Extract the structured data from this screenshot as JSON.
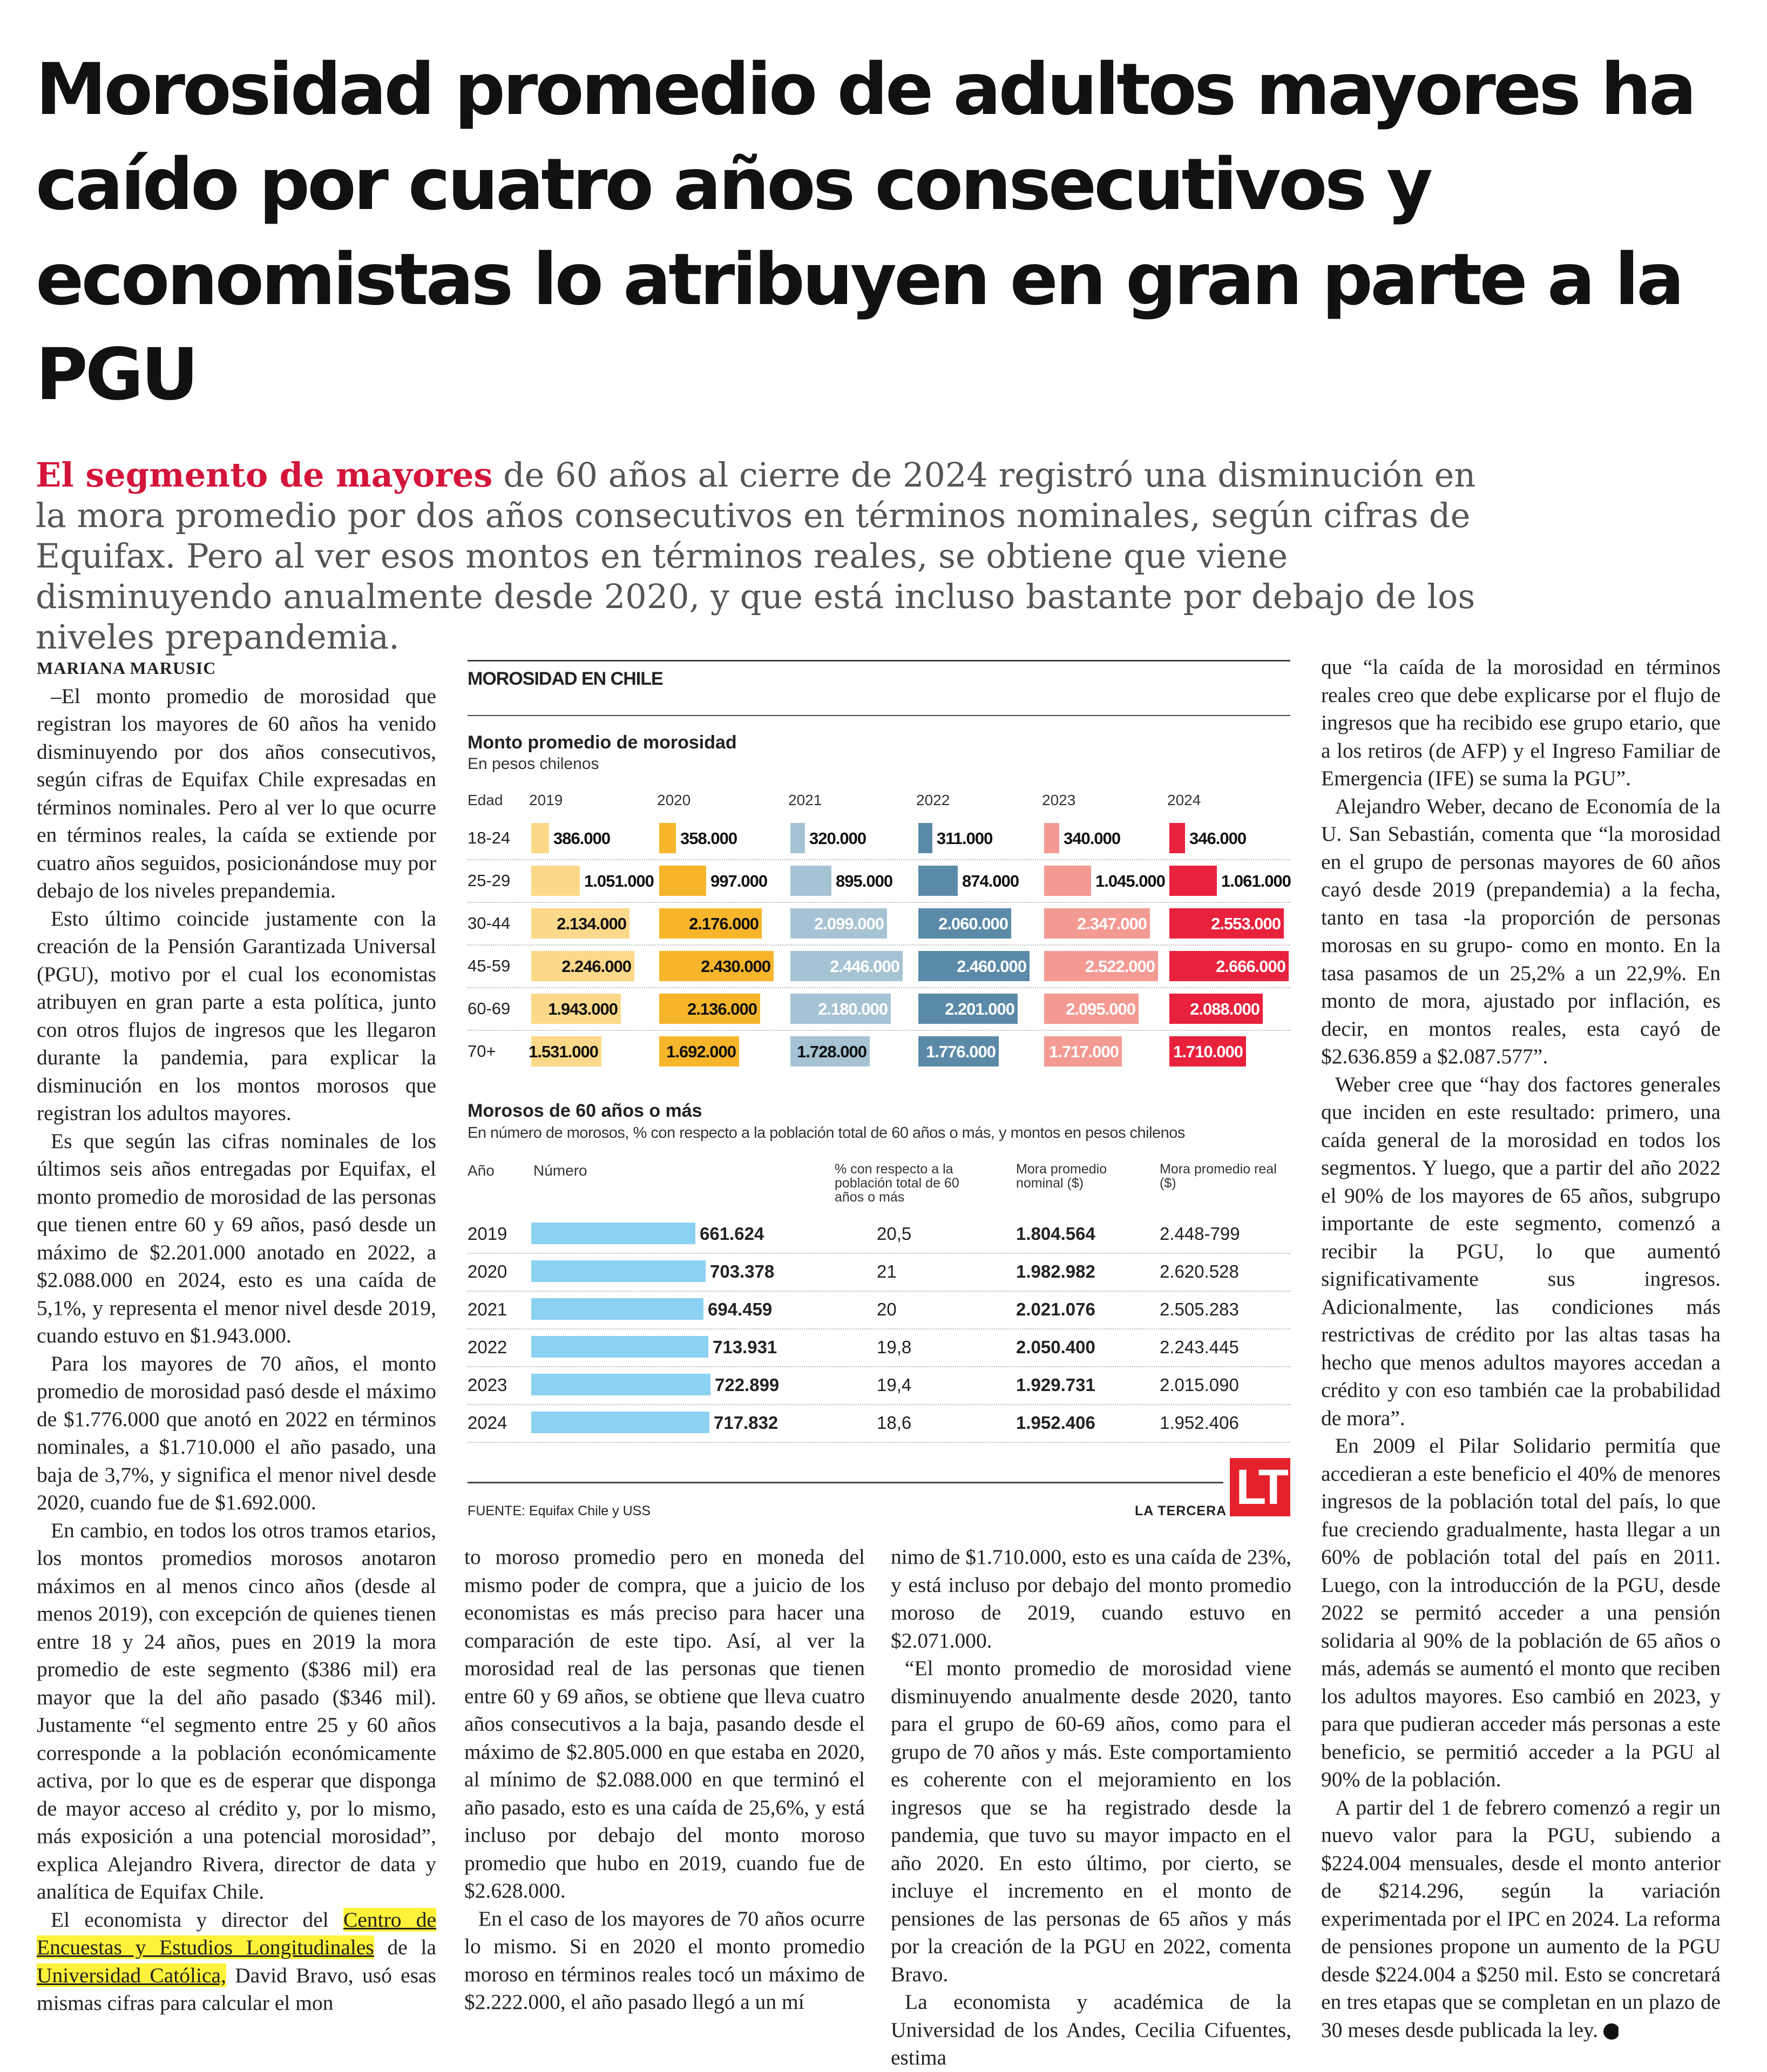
{
  "headline": "Morosidad promedio de adultos mayores ha caído por cuatro años consecutivos y economistas lo atribuyen en gran parte a la PGU",
  "dek": {
    "lead": "El segmento de mayores",
    "rest": " de 60 años al cierre de 2024 registró una disminución en la mora promedio por dos años consecutivos en términos nominales, según cifras de Equifax. Pero al ver esos montos en términos reales, se obtiene que viene disminuyendo anualmente desde 2020, y que está incluso bastante por debajo de los niveles prepandemia."
  },
  "byline": "MARIANA MARUSIC",
  "article": {
    "p1": "–El monto promedio de morosidad que registran los mayores de 60 años ha venido disminuyendo por dos años consecutivos, según cifras de Equifax Chile expresadas en términos nominales. Pero al ver lo que ocurre en términos reales, la caída se extiende por cuatro años seguidos, posicionándose muy por debajo de los niveles prepandemia.",
    "p2": "Esto último coincide justamente con la creación de la Pensión Garantizada Universal (PGU), motivo por el cual los economistas atribuyen en gran parte a esta política, junto con otros flujos de ingresos que les llegaron durante la pandemia, para explicar la disminución en los montos morosos que registran los adultos mayores.",
    "p3": "Es que según las cifras nominales de los últimos seis años entregadas por Equifax, el monto promedio de morosidad de las personas que tienen entre 60 y 69 años, pasó desde un máximo de $2.201.000 anotado en 2022, a $2.088.000 en 2024, esto es una caída de 5,1%, y representa el menor nivel desde 2019, cuando estuvo en $1.943.000.",
    "p4": "Para los mayores de 70 años, el monto promedio de morosidad pasó desde el máximo de $1.776.000 que anotó en 2022 en términos nominales, a $1.710.000 el año pasado, una baja de 3,7%, y significa el menor nivel desde 2020, cuando fue de $1.692.000.",
    "p5": "En cambio, en todos los otros tramos etarios, los montos promedios morosos anotaron máximos en al menos cinco años (desde al menos 2019), con excepción de quienes tienen entre 18 y 24 años, pues en 2019 la mora promedio de este segmento ($386 mil) era mayor que la del año pasado ($346 mil). Justamente “el segmento entre 25 y 60 años corresponde a la población económicamente activa, por lo que es de esperar que disponga de mayor acceso al crédito y, por lo mismo, más exposición a una potencial morosidad”, explica Alejandro Rivera, director de data y analítica de Equifax Chile.",
    "p6_a": "El economista y director del ",
    "p6_hl1": "Centro de Encuestas y Estudios Longitudinales",
    "p6_b": " de la ",
    "p6_hl2": "Universidad Católica,",
    "p6_c": " David Bravo, usó esas mismas cifras para calcular el mon",
    "c2p1": "to moroso promedio pero en moneda del mismo poder de compra, que a juicio de los economistas es más preciso para hacer una comparación de este tipo. Así, al ver la morosidad real de las personas que tienen entre 60 y 69 años, se obtiene que lleva cuatro años consecutivos a la baja, pasando desde el máximo de $2.805.000 en que estaba en 2020, al mínimo de $2.088.000 en que terminó el año pasado, esto es una caída de 25,6%, y está incluso por debajo del monto moroso promedio que hubo en 2019, cuando fue de $2.628.000.",
    "c2p2": "En el caso de los mayores de 70 años ocurre lo mismo. Si en 2020 el monto promedio moroso en términos reales tocó un máximo de $2.222.000, el año pasado llegó a un mí",
    "c3p1": "nimo de $1.710.000, esto es una caída de 23%, y está incluso por debajo del monto promedio moroso de 2019, cuando estuvo en $2.071.000.",
    "c3p2": "“El monto promedio de morosidad viene disminuyendo anualmente desde 2020, tanto para el grupo de 60-69 años, como para el grupo de 70 años y más. Este comportamiento es coherente con el mejoramiento en los ingresos que se ha registrado desde la pandemia, que tuvo su mayor impacto en el año 2020. En esto último, por cierto, se incluye el incremento en el monto de pensiones de las personas de 65 años y más por la creación de la PGU en 2022, comenta Bravo.",
    "c3p3": "La economista y académica de la Universidad de los Andes, Cecilia Cifuentes, estima",
    "c4p1": "que “la caída de la morosidad en términos reales creo que debe explicarse por el flujo de ingresos que ha recibido ese grupo etario, que a los retiros (de AFP) y el Ingreso Familiar de Emergencia (IFE) se suma la PGU”.",
    "c4p2": "Alejandro Weber, decano de Economía de la U. San Sebastián, comenta que “la morosidad en el grupo de personas mayores de 60 años cayó desde 2019 (prepandemia) a la fecha, tanto en tasa -la proporción de personas morosas en su grupo- como en monto. En la tasa pasamos de un 25,2% a un 22,9%. En monto de mora, ajustado por inflación, es decir, en montos reales, esta cayó de $2.636.859 a $2.087.577”.",
    "c4p3": "Weber cree que “hay dos factores generales que inciden en este resultado: primero, una caída general de la morosidad en todos los segmentos. Y luego, que a partir del año 2022 el 90% de los mayores de 65 años, subgrupo importante de este segmento, comenzó a recibir la PGU, lo que aumentó significativamente sus ingresos. Adicionalmente, las condiciones más restrictivas de crédito por las altas tasas ha hecho que menos adultos mayores accedan a crédito y con eso también cae la probabilidad de mora”.",
    "c4p4": "En 2009 el Pilar Solidario permitía que accedieran a este beneficio el 40% de menores ingresos de la población total del país, lo que fue creciendo gradualmente, hasta llegar a un 60% de población total del país en 2011. Luego, con la introducción de la PGU, desde 2022 se permitó acceder a una pensión solidaria al 90% de la población de 65 años o más, además se aumentó el monto que reciben los adultos mayores. Eso cambió en 2023, y para que pudieran acceder más personas a este beneficio, se permitió acceder a la PGU al 90% de la población.",
    "c4p5": "A partir del 1 de febrero comenzó a regir un nuevo valor para la PGU, subiendo a $224.004 mensuales, desde el monto anterior de $214.296, según la variación experimentada por el IPC en 2024. La reforma de pensiones propone un aumento de la PGU desde $224.004 a $250 mil. Esto se concretará en tres etapas que se completan en un plazo de 30 meses desde publicada la ley."
  },
  "chart_data": [
    {
      "type": "bar",
      "graphic_title": "MOROSIDAD EN CHILE",
      "title": "Monto promedio de morosidad",
      "subtitle": "En pesos chilenos",
      "row_header": "Edad",
      "categories": [
        "18-24",
        "25-29",
        "30-44",
        "45-59",
        "60-69",
        "70+"
      ],
      "series": [
        {
          "name": "2019",
          "color": "#fcd98a",
          "values": [
            386000,
            1051000,
            2134000,
            2246000,
            1943000,
            1531000
          ],
          "labels": [
            "386.000",
            "1.051.000",
            "2.134.000",
            "2.246.000",
            "1.943.000",
            "1.531.000"
          ]
        },
        {
          "name": "2020",
          "color": "#f7b52b",
          "values": [
            358000,
            997000,
            2176000,
            2430000,
            2136000,
            1692000
          ],
          "labels": [
            "358.000",
            "997.000",
            "2.176.000",
            "2.430.000",
            "2.136.000",
            "1.692.000"
          ]
        },
        {
          "name": "2021",
          "color": "#a6c3d3",
          "values": [
            320000,
            895000,
            2099000,
            2446000,
            2180000,
            1728000
          ],
          "labels": [
            "320.000",
            "895.000",
            "2.099.000",
            "2.446.000",
            "2.180.000",
            "1.728.000"
          ]
        },
        {
          "name": "2022",
          "color": "#5b8aa8",
          "values": [
            311000,
            874000,
            2060000,
            2460000,
            2201000,
            1776000
          ],
          "labels": [
            "311.000",
            "874.000",
            "2.060.000",
            "2.460.000",
            "2.201.000",
            "1.776.000"
          ]
        },
        {
          "name": "2023",
          "color": "#f39a93",
          "values": [
            340000,
            1045000,
            2347000,
            2522000,
            2095000,
            1717000
          ],
          "labels": [
            "340.000",
            "1.045.000",
            "2.347.000",
            "2.522.000",
            "2.095.000",
            "1.717.000"
          ]
        },
        {
          "name": "2024",
          "color": "#e8213c",
          "values": [
            346000,
            1061000,
            2553000,
            2666000,
            2088000,
            1710000
          ],
          "labels": [
            "346.000",
            "1.061.000",
            "2.553.000",
            "2.666.000",
            "2.088.000",
            "1.710.000"
          ]
        }
      ]
    },
    {
      "type": "table",
      "title": "Morosos de 60 años o más",
      "subtitle": "En número de morosos, % con respecto a la población total de 60 años o más, y montos en pesos chilenos",
      "columns": [
        "Año",
        "Número",
        "% con respecto a la población total de 60 años o más",
        "Mora promedio nominal ($)",
        "Mora promedio real ($)"
      ],
      "bar_color": "#8bd1f1",
      "rows": [
        {
          "year": "2019",
          "number": 661624,
          "number_label": "661.624",
          "pct": "20,5",
          "nominal": "1.804.564",
          "real": "2.448-799"
        },
        {
          "year": "2020",
          "number": 703378,
          "number_label": "703.378",
          "pct": "21",
          "nominal": "1.982.982",
          "real": "2.620.528"
        },
        {
          "year": "2021",
          "number": 694459,
          "number_label": "694.459",
          "pct": "20",
          "nominal": "2.021.076",
          "real": "2.505.283"
        },
        {
          "year": "2022",
          "number": 713931,
          "number_label": "713.931",
          "pct": "19,8",
          "nominal": "2.050.400",
          "real": "2.243.445"
        },
        {
          "year": "2023",
          "number": 722899,
          "number_label": "722.899",
          "pct": "19,4",
          "nominal": "1.929.731",
          "real": "2.015.090"
        },
        {
          "year": "2024",
          "number": 717832,
          "number_label": "717.832",
          "pct": "18,6",
          "nominal": "1.952.406",
          "real": "1.952.406"
        }
      ]
    }
  ],
  "source": "FUENTE: Equifax Chile y USS",
  "brand": "LA TERCERA",
  "logo_text": "LT"
}
